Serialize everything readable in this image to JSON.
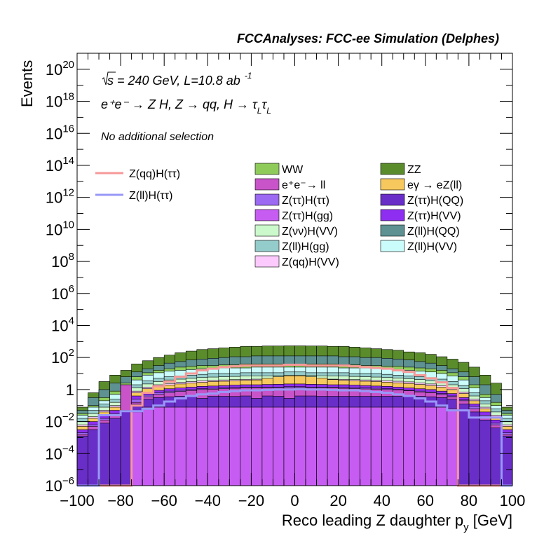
{
  "header": "FCCAnalyses: FCC-ee Simulation (Delphes)",
  "annotations": {
    "energy_sqrt": "√s",
    "energy_rest": " = 240 GeV, L=10.8 ab",
    "energy_exp": "-1",
    "process": "e⁺e⁻ → Z H, Z → qq, H → τ",
    "process_sub1": "L",
    "process_tau2": "τ",
    "process_sub2": "L",
    "selection": "No additional selection"
  },
  "colors": {
    "WW": "#8fcb5b",
    "ZZ": "#5b8c2c",
    "ee_ll": "#c954c9",
    "egamma": "#f7c85d",
    "Ztt_Htt": "#9b69f2",
    "Ztt_HQQ": "#6a2ec8",
    "Ztt_Hgg": "#c65cf1",
    "Ztt_HVV": "#8e2ef0",
    "Znn_HVV": "#ccf9cc",
    "Zll_HQQ": "#5e9191",
    "Zll_Hgg": "#94cbcb",
    "Zll_HVV": "#cbfcfc",
    "Zqq_HVV": "#fccafc",
    "sig_qq": "#f79898",
    "sig_ll": "#9898f7"
  },
  "chart_data": {
    "type": "area",
    "title": "FCCAnalyses: FCC-ee Simulation (Delphes)",
    "xlabel": "Reco leading Z daughter p",
    "xlabel_sub": "y",
    "xlabel_unit": " [GeV]",
    "ylabel": "Events",
    "xlim": [
      -100,
      100
    ],
    "ylim_log10": [
      -6,
      21
    ],
    "log_y": true,
    "bin_width": 5,
    "x_ticks": [
      "−100",
      "−80",
      "−60",
      "−40",
      "−20",
      "0",
      "20",
      "40",
      "60",
      "80",
      "100"
    ],
    "y_ticks": [
      {
        "log": -6,
        "base": "10",
        "exp": "−6"
      },
      {
        "log": -4,
        "base": "10",
        "exp": "−4"
      },
      {
        "log": -2,
        "base": "10",
        "exp": "−2"
      },
      {
        "log": 0,
        "base": "1",
        "exp": ""
      },
      {
        "log": 2,
        "base": "10",
        "exp": "2"
      },
      {
        "log": 4,
        "base": "10",
        "exp": "4"
      },
      {
        "log": 6,
        "base": "10",
        "exp": "6"
      },
      {
        "log": 8,
        "base": "10",
        "exp": "8"
      },
      {
        "log": 10,
        "base": "10",
        "exp": "10"
      },
      {
        "log": 12,
        "base": "10",
        "exp": "12"
      },
      {
        "log": 14,
        "base": "10",
        "exp": "14"
      },
      {
        "log": 16,
        "base": "10",
        "exp": "16"
      },
      {
        "log": 18,
        "base": "10",
        "exp": "18"
      },
      {
        "log": 20,
        "base": "10",
        "exp": "20"
      }
    ],
    "bins": [
      -100,
      -95,
      -90,
      -85,
      -80,
      -75,
      -70,
      -65,
      -60,
      -55,
      -50,
      -45,
      -40,
      -35,
      -30,
      -25,
      -20,
      -15,
      -10,
      -5,
      0,
      5,
      10,
      15,
      20,
      25,
      30,
      35,
      40,
      45,
      50,
      55,
      60,
      65,
      70,
      75,
      80,
      85,
      90,
      95
    ],
    "stack_log10": [
      {
        "key": "ZZ",
        "bounds": [
          -1.1,
          -0.2,
          0.5,
          0.9,
          1.2,
          1.6,
          1.8,
          2.0,
          2.15,
          2.3,
          2.4,
          2.5,
          2.55,
          2.6,
          2.65,
          2.7,
          2.7,
          2.72,
          2.72,
          2.73,
          2.73,
          2.72,
          2.72,
          2.7,
          2.7,
          2.65,
          2.6,
          2.55,
          2.5,
          2.45,
          2.35,
          2.3,
          2.2,
          2.05,
          1.9,
          1.7,
          1.4,
          0.9,
          0.4,
          -1.1
        ]
      },
      {
        "key": "Zll_HQQ",
        "bounds": [
          -1.3,
          -0.5,
          0.0,
          0.4,
          0.8,
          1.1,
          1.3,
          1.5,
          1.65,
          1.75,
          1.85,
          1.9,
          1.95,
          2.0,
          2.05,
          2.05,
          2.1,
          2.1,
          2.1,
          2.1,
          2.1,
          2.1,
          2.1,
          2.1,
          2.05,
          2.05,
          2.0,
          2.0,
          1.95,
          1.9,
          1.85,
          1.75,
          1.65,
          1.5,
          1.3,
          1.1,
          0.8,
          0.3,
          -0.3,
          -1.3
        ]
      },
      {
        "key": "WW",
        "bounds": [
          -1.5,
          -1.0,
          -0.5,
          -0.1,
          0.4,
          0.8,
          1.05,
          1.2,
          1.3,
          1.4,
          1.45,
          1.5,
          1.5,
          1.55,
          1.55,
          1.6,
          1.6,
          1.6,
          1.6,
          1.6,
          1.6,
          1.6,
          1.6,
          1.6,
          1.55,
          1.55,
          1.5,
          1.5,
          1.45,
          1.45,
          1.4,
          1.35,
          1.3,
          1.2,
          1.05,
          0.8,
          0.3,
          -0.3,
          -0.8,
          -1.5
        ]
      },
      {
        "key": "Zll_HVV",
        "bounds": [
          -1.6,
          -1.1,
          -0.7,
          -0.3,
          0.2,
          0.6,
          0.9,
          1.05,
          1.15,
          1.2,
          1.25,
          1.3,
          1.3,
          1.35,
          1.35,
          1.35,
          1.4,
          1.4,
          1.4,
          1.4,
          1.4,
          1.4,
          1.4,
          1.4,
          1.35,
          1.35,
          1.35,
          1.3,
          1.3,
          1.25,
          1.2,
          1.15,
          1.1,
          1.0,
          0.85,
          0.6,
          0.1,
          -0.5,
          -1.0,
          -1.6
        ]
      },
      {
        "key": "Zll_Hgg",
        "bounds": [
          -1.8,
          -1.3,
          -0.9,
          -0.6,
          -0.1,
          0.3,
          0.55,
          0.7,
          0.8,
          0.85,
          0.9,
          0.95,
          1.0,
          1.0,
          1.0,
          1.05,
          1.05,
          1.05,
          1.05,
          1.1,
          1.1,
          1.05,
          1.05,
          1.05,
          1.05,
          1.0,
          1.0,
          1.0,
          0.95,
          0.9,
          0.85,
          0.8,
          0.75,
          0.65,
          0.5,
          0.25,
          -0.2,
          -0.7,
          -1.2,
          -1.8
        ]
      },
      {
        "key": "Znn_HVV",
        "bounds": [
          -2.0,
          -1.5,
          -1.1,
          -0.8,
          -0.3,
          0.1,
          0.35,
          0.5,
          0.6,
          0.65,
          0.7,
          0.75,
          0.78,
          0.8,
          0.82,
          0.85,
          0.85,
          0.85,
          0.87,
          0.9,
          0.9,
          0.88,
          0.86,
          0.85,
          0.84,
          0.82,
          0.8,
          0.78,
          0.75,
          0.72,
          0.68,
          0.62,
          0.55,
          0.45,
          0.3,
          0.05,
          -0.4,
          -0.9,
          -1.4,
          -2.0
        ]
      },
      {
        "key": "Zqq_HVV",
        "bounds": [
          -2.2,
          -1.7,
          -1.3,
          -1.0,
          -0.5,
          -0.1,
          0.15,
          0.3,
          0.38,
          0.45,
          0.5,
          0.55,
          0.58,
          0.6,
          0.62,
          0.64,
          0.65,
          0.66,
          0.68,
          0.7,
          0.7,
          0.68,
          0.66,
          0.65,
          0.64,
          0.62,
          0.6,
          0.58,
          0.55,
          0.52,
          0.48,
          0.42,
          0.35,
          0.25,
          0.1,
          -0.15,
          -0.6,
          -1.1,
          -1.6,
          -2.2
        ]
      },
      {
        "key": "egamma",
        "bounds": [
          -2.3,
          -1.8,
          -1.4,
          -1.1,
          -0.6,
          -0.2,
          0.05,
          0.2,
          0.28,
          0.35,
          0.4,
          0.45,
          0.5,
          0.52,
          0.55,
          0.58,
          0.6,
          0.7,
          0.8,
          0.85,
          0.85,
          0.8,
          0.72,
          0.62,
          0.58,
          0.55,
          0.52,
          0.5,
          0.46,
          0.42,
          0.38,
          0.32,
          0.25,
          0.15,
          0.0,
          -0.25,
          -0.7,
          -1.2,
          -1.7,
          -2.3
        ]
      },
      {
        "key": "Ztt_HVV",
        "bounds": [
          -2.5,
          -2.0,
          -1.6,
          -1.3,
          -0.8,
          -0.4,
          -0.2,
          -0.05,
          0.05,
          0.1,
          0.15,
          0.2,
          0.22,
          0.25,
          0.28,
          0.3,
          0.3,
          0.32,
          0.33,
          0.35,
          0.35,
          0.33,
          0.32,
          0.3,
          0.3,
          0.28,
          0.25,
          0.22,
          0.2,
          0.15,
          0.1,
          0.05,
          0.0,
          -0.1,
          -0.25,
          -0.5,
          -0.9,
          -1.4,
          -1.9,
          -2.5
        ]
      },
      {
        "key": "Ztt_Htt",
        "bounds": [
          -2.7,
          -2.2,
          -1.8,
          -1.5,
          -1.0,
          -0.6,
          -0.35,
          -0.2,
          -0.1,
          -0.05,
          0.0,
          0.05,
          0.08,
          0.1,
          0.12,
          0.15,
          0.15,
          0.15,
          0.15,
          0.18,
          0.18,
          0.15,
          0.15,
          0.15,
          0.13,
          0.12,
          0.1,
          0.08,
          0.05,
          0.02,
          -0.05,
          -0.1,
          -0.15,
          -0.25,
          -0.4,
          -0.65,
          -1.05,
          -1.6,
          -2.1,
          -2.7
        ]
      },
      {
        "key": "ee_ll",
        "bounds": [
          -2.8,
          -2.3,
          -1.9,
          -1.6,
          0.3,
          -0.8,
          -0.45,
          -0.3,
          -0.2,
          -0.12,
          -0.06,
          0.0,
          0.02,
          0.05,
          0.08,
          0.1,
          0.1,
          0.1,
          0.1,
          0.1,
          0.12,
          0.1,
          0.1,
          0.1,
          0.08,
          0.06,
          0.04,
          0.02,
          0.0,
          -0.03,
          -0.08,
          -0.15,
          -0.2,
          -0.3,
          -0.45,
          -0.7,
          -1.2,
          -1.7,
          -2.2,
          -2.8
        ]
      },
      {
        "key": "Ztt_HQQ",
        "bounds": [
          -2.9,
          -2.5,
          -2.1,
          -1.8,
          -1.3,
          -0.9,
          -0.6,
          -0.5,
          -0.45,
          -0.42,
          -0.42,
          -0.55,
          -0.42,
          -0.42,
          -0.43,
          -0.4,
          -0.55,
          -0.4,
          -0.42,
          -0.55,
          -0.4,
          -0.4,
          -0.42,
          -0.42,
          -0.42,
          -0.42,
          -0.42,
          -0.42,
          -0.42,
          -0.42,
          -0.42,
          -0.42,
          -0.45,
          -0.5,
          -0.6,
          -0.9,
          -1.4,
          -1.9,
          -2.4,
          -2.9
        ]
      },
      {
        "key": "Ztt_Hgg",
        "bounds": [
          -6.0,
          -6.0,
          -6.0,
          -6.0,
          -6.0,
          -1.4,
          -1.1,
          -1.1,
          -1.1,
          -1.1,
          -1.1,
          -1.1,
          -1.1,
          -1.1,
          -1.1,
          -1.1,
          -1.1,
          -1.1,
          -1.1,
          -1.1,
          -1.1,
          -1.1,
          -1.1,
          -1.1,
          -1.1,
          -1.1,
          -1.1,
          -1.1,
          -1.1,
          -1.1,
          -1.1,
          -1.1,
          -1.1,
          -1.1,
          -1.2,
          -6.0,
          -6.0,
          -6.0,
          -6.0,
          -6.0
        ]
      }
    ],
    "lines_log10": [
      {
        "key": "sig_qq",
        "name": "Z(qq)H(ττ)",
        "values": [
          -6.0,
          -6.0,
          -6.0,
          -6.0,
          -6.0,
          -1.0,
          -0.2,
          0.2,
          0.5,
          0.8,
          1.0,
          1.2,
          1.3,
          1.4,
          1.45,
          1.5,
          1.5,
          1.5,
          1.5,
          1.55,
          1.55,
          1.5,
          1.5,
          1.5,
          1.5,
          1.45,
          1.4,
          1.35,
          1.3,
          1.2,
          1.1,
          0.9,
          0.7,
          0.45,
          0.1,
          -6.0,
          -6.0,
          -6.0,
          -6.0,
          -6.0
        ]
      },
      {
        "key": "sig_ll",
        "name": "Z(ll)H(ττ)",
        "values": [
          -6.0,
          -6.0,
          -1.6,
          -1.6,
          -1.35,
          -1.35,
          -1.2,
          -1.0,
          -0.75,
          -0.55,
          -0.4,
          -0.3,
          -0.25,
          -0.15,
          -0.1,
          -0.05,
          -0.05,
          -0.02,
          0.0,
          0.0,
          0.02,
          0.0,
          0.0,
          -0.02,
          -0.05,
          -0.05,
          -0.1,
          -0.15,
          -0.2,
          -0.3,
          -0.4,
          -0.55,
          -0.75,
          -1.0,
          -1.3,
          -1.3,
          -1.75,
          -1.75,
          -1.75,
          -6.0
        ]
      }
    ],
    "legend_lines": [
      "Z(qq)H(ττ)",
      "Z(ll)H(ττ)"
    ],
    "legend_fills": [
      {
        "key": "WW",
        "label": "WW"
      },
      {
        "key": "ZZ",
        "label": "ZZ"
      },
      {
        "key": "ee_ll",
        "label": "e⁺e⁻→ ll"
      },
      {
        "key": "egamma",
        "label": "eγ → eZ(ll)"
      },
      {
        "key": "Ztt_Htt",
        "label": "Z(ττ)H(ττ)"
      },
      {
        "key": "Ztt_HQQ",
        "label": "Z(ττ)H(QQ)"
      },
      {
        "key": "Ztt_Hgg",
        "label": "Z(ττ)H(gg)"
      },
      {
        "key": "Ztt_HVV",
        "label": "Z(ττ)H(VV)"
      },
      {
        "key": "Znn_HVV",
        "label": "Z(νν)H(VV)"
      },
      {
        "key": "Zll_HQQ",
        "label": "Z(ll)H(QQ)"
      },
      {
        "key": "Zll_Hgg",
        "label": "Z(ll)H(gg)"
      },
      {
        "key": "Zll_HVV",
        "label": "Z(ll)H(VV)"
      },
      {
        "key": "Zqq_HVV",
        "label": "Z(qq)H(VV)"
      }
    ]
  }
}
